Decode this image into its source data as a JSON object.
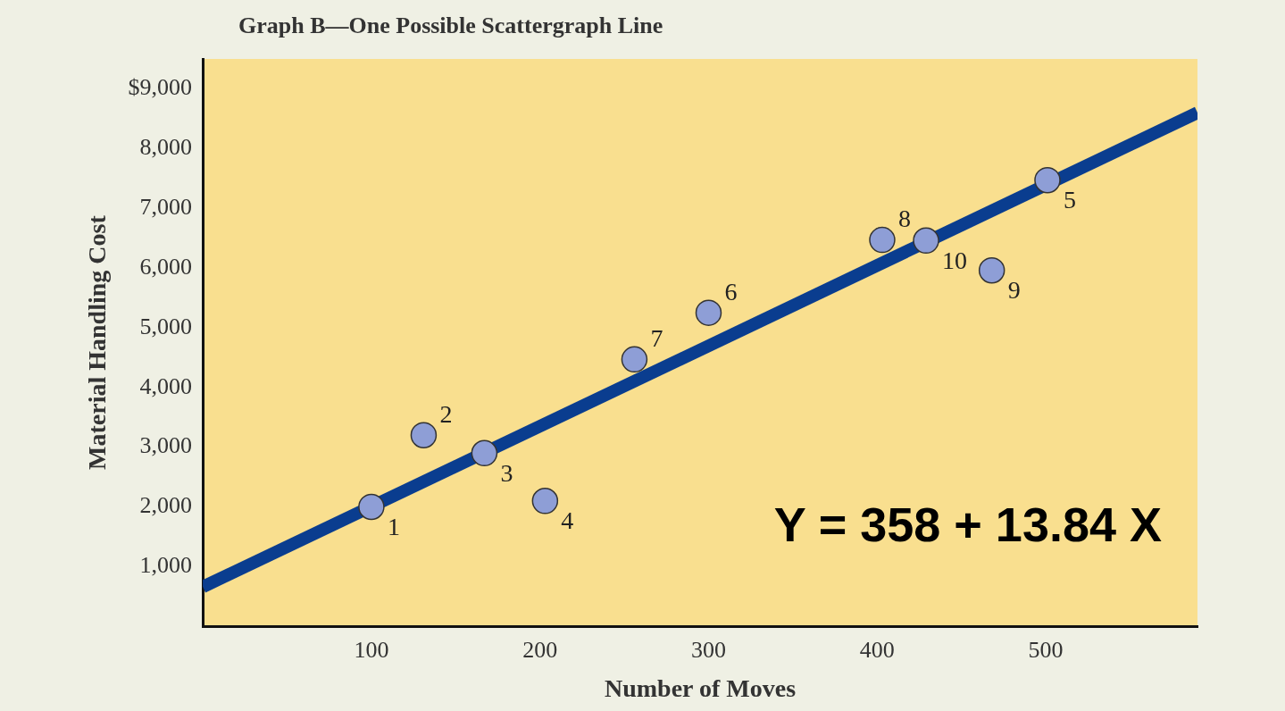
{
  "chart_data": {
    "type": "scatter",
    "title": "Graph B—One Possible Scattergraph Line",
    "xlabel": "Number of Moves",
    "ylabel": "Material Handling Cost",
    "xlim": [
      0,
      590
    ],
    "ylim": [
      0,
      9500
    ],
    "xticks": [
      100,
      200,
      300,
      400,
      500
    ],
    "yticks": [
      {
        "value": 1000,
        "label": "1,000"
      },
      {
        "value": 2000,
        "label": "2,000"
      },
      {
        "value": 3000,
        "label": "3,000"
      },
      {
        "value": 4000,
        "label": "4,000"
      },
      {
        "value": 5000,
        "label": "5,000"
      },
      {
        "value": 6000,
        "label": "6,000"
      },
      {
        "value": 7000,
        "label": "7,000"
      },
      {
        "value": 8000,
        "label": "8,000"
      },
      {
        "value": 9000,
        "label": "$9,000"
      }
    ],
    "grid": false,
    "legend": false,
    "marker": "circle",
    "series": [
      {
        "type": "scatter",
        "color": "#8e9ed6",
        "x": [
          100,
          131,
          167,
          203,
          501,
          300,
          256,
          403,
          468,
          429
        ],
        "values": [
          2000,
          3200,
          2900,
          2100,
          7470,
          5250,
          4470,
          6470,
          5960,
          6460
        ]
      },
      {
        "type": "line",
        "color": "#0a3d8f",
        "line_style": "solid",
        "marker": "none",
        "x": [
          0,
          590
        ],
        "values": [
          660,
          8600
        ]
      }
    ],
    "annotations": [
      {
        "text": "1",
        "x": 100,
        "y": 2000
      },
      {
        "text": "2",
        "x": 131,
        "y": 3200
      },
      {
        "text": "3",
        "x": 167,
        "y": 2900
      },
      {
        "text": "4",
        "x": 203,
        "y": 2100
      },
      {
        "text": "5",
        "x": 501,
        "y": 7470
      },
      {
        "text": "6",
        "x": 300,
        "y": 5250
      },
      {
        "text": "7",
        "x": 256,
        "y": 4470
      },
      {
        "text": "8",
        "x": 403,
        "y": 6470
      },
      {
        "text": "9",
        "x": 468,
        "y": 5960
      },
      {
        "text": "10",
        "x": 429,
        "y": 6460
      },
      "Y = 358 + 13.84 X"
    ]
  }
}
